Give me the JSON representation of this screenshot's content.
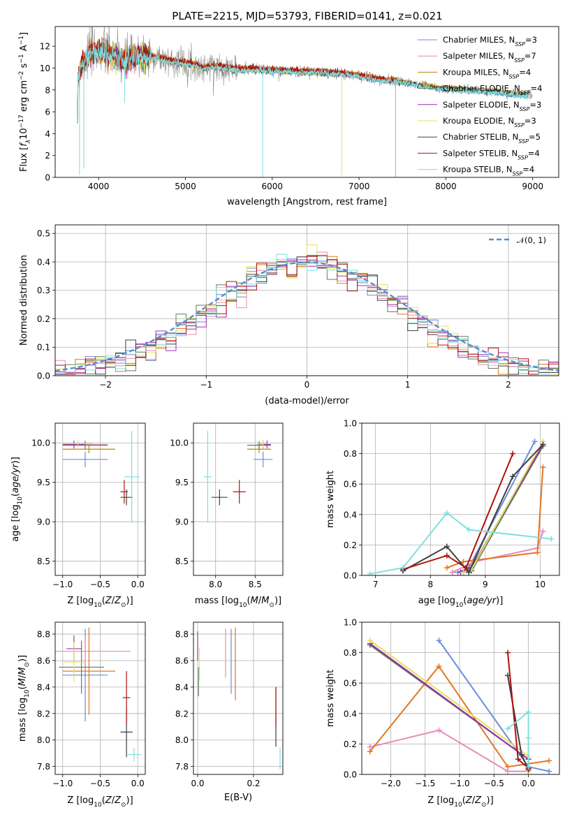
{
  "title": "PLATE=2215, MJD=53793, FIBERID=0141, z=0.021",
  "colors": {
    "Chabrier MILES": "#6b8ddc",
    "Salpeter MILES": "#e58bb8",
    "Kroupa MILES": "#b8860b",
    "Chabrier ELODIE": "#5f7f5f",
    "Salpeter ELODIE": "#9b30b0",
    "Kroupa ELODIE": "#e6e060",
    "Chabrier STELIB": "#404040",
    "Salpeter STELIB": "#b01010",
    "Kroupa STELIB": "#80dede",
    "orange": "#e07820",
    "observed": "#8a8a8a",
    "gaussian": "#5a8ad8"
  },
  "legend_entries": [
    {
      "name": "Chabrier MILES",
      "text": "Chabrier MILES, N",
      "sub": "SSP",
      "suffix": "=3"
    },
    {
      "name": "Salpeter MILES",
      "text": "Salpeter MILES, N",
      "sub": "SSP",
      "suffix": "=7"
    },
    {
      "name": "Kroupa MILES",
      "text": "Kroupa MILES, N",
      "sub": "SSP",
      "suffix": "=4"
    },
    {
      "name": "Chabrier ELODIE",
      "text": "Chabrier ELODIE, N",
      "sub": "SSP",
      "suffix": "=4"
    },
    {
      "name": "Salpeter ELODIE",
      "text": "Salpeter ELODIE, N",
      "sub": "SSP",
      "suffix": "=3"
    },
    {
      "name": "Kroupa ELODIE",
      "text": "Kroupa ELODIE, N",
      "sub": "SSP",
      "suffix": "=3"
    },
    {
      "name": "Chabrier STELIB",
      "text": "Chabrier STELIB, N",
      "sub": "SSP",
      "suffix": "=5"
    },
    {
      "name": "Salpeter STELIB",
      "text": "Salpeter STELIB, N",
      "sub": "SSP",
      "suffix": "=4"
    },
    {
      "name": "Kroupa STELIB",
      "text": "Kroupa STELIB, N",
      "sub": "SSP",
      "suffix": "=4"
    }
  ],
  "chart_data": [
    {
      "type": "line",
      "id": "spectrum",
      "xlabel": "wavelength [Angstrom, rest frame]",
      "ylabel": "Flux [f_λ 10^-17 erg cm^-2 s^-1 A^-1]",
      "xlim": [
        3500,
        9300
      ],
      "ylim": [
        0,
        13.8
      ],
      "xticks": [
        4000,
        5000,
        6000,
        7000,
        8000,
        9000
      ],
      "yticks": [
        0,
        2,
        4,
        6,
        8,
        10,
        12
      ],
      "legend": "top-right",
      "model_continuum": [
        [
          3750,
          8.5
        ],
        [
          3800,
          10.2
        ],
        [
          3850,
          10.8
        ],
        [
          3900,
          11.5
        ],
        [
          4000,
          11.6
        ],
        [
          4100,
          11.3
        ],
        [
          4200,
          11.0
        ],
        [
          4300,
          10.6
        ],
        [
          4400,
          10.9
        ],
        [
          4500,
          11.0
        ],
        [
          4600,
          11.0
        ],
        [
          4700,
          10.9
        ],
        [
          4800,
          10.7
        ],
        [
          4900,
          10.6
        ],
        [
          5000,
          10.5
        ],
        [
          5100,
          10.3
        ],
        [
          5200,
          10.0
        ],
        [
          5300,
          10.2
        ],
        [
          5400,
          10.1
        ],
        [
          5500,
          10.0
        ],
        [
          5600,
          9.9
        ],
        [
          5800,
          9.9
        ],
        [
          6000,
          9.8
        ],
        [
          6200,
          9.7
        ],
        [
          6400,
          9.7
        ],
        [
          6600,
          9.6
        ],
        [
          6800,
          9.5
        ],
        [
          7000,
          9.3
        ],
        [
          7200,
          9.0
        ],
        [
          7400,
          8.8
        ],
        [
          7600,
          8.6
        ],
        [
          7800,
          8.3
        ],
        [
          8000,
          8.1
        ],
        [
          8200,
          8.0
        ],
        [
          8400,
          7.9
        ],
        [
          8600,
          7.8
        ],
        [
          8800,
          7.6
        ],
        [
          9000,
          7.5
        ]
      ],
      "dips": [
        [
          3780,
          0.2
        ],
        [
          3830,
          0.8
        ],
        [
          4300,
          6.8
        ],
        [
          5890,
          0.0
        ],
        [
          6800,
          0.2
        ],
        [
          7420,
          0.0
        ]
      ]
    },
    {
      "type": "bar",
      "id": "residuals",
      "xlabel": "(data-model)/error",
      "ylabel": "Normed distribution",
      "xlim": [
        -2.5,
        2.5
      ],
      "ylim": [
        0,
        0.53
      ],
      "xticks": [
        -2,
        -1,
        0,
        1,
        2
      ],
      "yticks": [
        0.0,
        0.1,
        0.2,
        0.3,
        0.4,
        0.5
      ],
      "grid": true,
      "legend": "top-right",
      "gaussian_label": "𝒩(0, 1)",
      "bin_width": 0.1
    },
    {
      "type": "scatter",
      "id": "age-vs-Z",
      "xlabel": "Z [log10(Z/Z⊙)]",
      "ylabel": "age [log10(age/yr)]",
      "xlim": [
        -1.1,
        0.1
      ],
      "ylim": [
        8.32,
        10.25
      ],
      "xticks": [
        -1.0,
        -0.5,
        0.0
      ],
      "yticks": [
        8.5,
        9.0,
        9.5,
        10.0
      ],
      "grid": true,
      "points": [
        {
          "series": "Chabrier MILES",
          "x": -0.7,
          "y": 9.79,
          "xerr": 0.3,
          "yerr": 0.1
        },
        {
          "series": "Salpeter MILES",
          "x": -0.7,
          "y": 9.98,
          "xerr": 0.3,
          "yerr": 0.05
        },
        {
          "series": "Kroupa MILES",
          "x": -0.65,
          "y": 9.92,
          "xerr": 0.35,
          "yerr": 0.05
        },
        {
          "series": "Chabrier ELODIE",
          "x": -0.7,
          "y": 9.97,
          "xerr": 0.3,
          "yerr": 0.05
        },
        {
          "series": "Salpeter ELODIE",
          "x": -0.85,
          "y": 9.98,
          "xerr": 0.15,
          "yerr": 0.05
        },
        {
          "series": "Kroupa ELODIE",
          "x": -0.8,
          "y": 9.99,
          "xerr": 0.2,
          "yerr": 0.05
        },
        {
          "series": "Chabrier STELIB",
          "x": -0.15,
          "y": 9.31,
          "xerr": 0.08,
          "yerr": 0.1
        },
        {
          "series": "Salpeter STELIB",
          "x": -0.18,
          "y": 9.38,
          "xerr": 0.05,
          "yerr": 0.15
        },
        {
          "series": "Kroupa STELIB",
          "x": -0.08,
          "y": 9.57,
          "xerr": 0.1,
          "yerr": 0.58
        }
      ]
    },
    {
      "type": "scatter",
      "id": "age-vs-mass",
      "xlabel": "mass [log10(M/M⊙)]",
      "ylabel": "",
      "xlim": [
        7.72,
        8.85
      ],
      "ylim": [
        8.32,
        10.25
      ],
      "xticks": [
        8.0,
        8.5
      ],
      "yticks": [
        8.5,
        9.0,
        9.5,
        10.0
      ],
      "grid": true,
      "points": [
        {
          "series": "Chabrier MILES",
          "x": 8.6,
          "y": 9.79,
          "xerr": 0.12,
          "yerr": 0.1
        },
        {
          "series": "Salpeter MILES",
          "x": 8.6,
          "y": 9.98,
          "xerr": 0.08,
          "yerr": 0.05
        },
        {
          "series": "Kroupa MILES",
          "x": 8.55,
          "y": 9.92,
          "xerr": 0.15,
          "yerr": 0.05
        },
        {
          "series": "Chabrier ELODIE",
          "x": 8.55,
          "y": 9.97,
          "xerr": 0.15,
          "yerr": 0.05
        },
        {
          "series": "Salpeter ELODIE",
          "x": 8.65,
          "y": 9.98,
          "xerr": 0.05,
          "yerr": 0.05
        },
        {
          "series": "Kroupa ELODIE",
          "x": 8.6,
          "y": 9.99,
          "xerr": 0.05,
          "yerr": 0.05
        },
        {
          "series": "Chabrier STELIB",
          "x": 8.05,
          "y": 9.31,
          "xerr": 0.1,
          "yerr": 0.1
        },
        {
          "series": "Salpeter STELIB",
          "x": 8.3,
          "y": 9.38,
          "xerr": 0.08,
          "yerr": 0.15
        },
        {
          "series": "Kroupa STELIB",
          "x": 7.9,
          "y": 9.57,
          "xerr": 0.05,
          "yerr": 0.58
        }
      ]
    },
    {
      "type": "line",
      "id": "weight-vs-age",
      "xlabel": "age [log10(age/yr)]",
      "ylabel": "mass weight",
      "xlim": [
        6.75,
        10.35
      ],
      "ylim": [
        0,
        1
      ],
      "xticks": [
        7,
        8,
        9,
        10
      ],
      "yticks": [
        0.0,
        0.2,
        0.4,
        0.6,
        0.8,
        1.0
      ],
      "grid": true,
      "series": [
        {
          "name": "Chabrier MILES",
          "points": [
            [
              8.5,
              0.02
            ],
            [
              8.7,
              0.05
            ],
            [
              9.9,
              0.88
            ]
          ]
        },
        {
          "name": "Salpeter MILES",
          "points": [
            [
              8.4,
              0.02
            ],
            [
              8.8,
              0.09
            ],
            [
              9.95,
              0.18
            ],
            [
              10.05,
              0.29
            ]
          ]
        },
        {
          "name": "orange",
          "points": [
            [
              8.3,
              0.05
            ],
            [
              8.6,
              0.09
            ],
            [
              9.95,
              0.15
            ],
            [
              10.05,
              0.71
            ]
          ]
        },
        {
          "name": "Chabrier ELODIE",
          "points": [
            [
              8.6,
              0.02
            ],
            [
              8.75,
              0.03
            ],
            [
              10.05,
              0.85
            ]
          ]
        },
        {
          "name": "Salpeter ELODIE",
          "points": [
            [
              8.55,
              0.02
            ],
            [
              8.75,
              0.05
            ],
            [
              10.05,
              0.86
            ]
          ]
        },
        {
          "name": "Kroupa ELODIE",
          "points": [
            [
              8.6,
              0.02
            ],
            [
              8.75,
              0.04
            ],
            [
              10.05,
              0.88
            ]
          ]
        },
        {
          "name": "Chabrier STELIB",
          "points": [
            [
              7.5,
              0.03
            ],
            [
              8.3,
              0.19
            ],
            [
              8.7,
              0.02
            ],
            [
              9.5,
              0.65
            ],
            [
              10.05,
              0.86
            ]
          ]
        },
        {
          "name": "Salpeter STELIB",
          "points": [
            [
              7.5,
              0.04
            ],
            [
              8.3,
              0.13
            ],
            [
              8.65,
              0.05
            ],
            [
              9.5,
              0.8
            ]
          ]
        },
        {
          "name": "Kroupa STELIB",
          "points": [
            [
              6.9,
              0.01
            ],
            [
              7.5,
              0.05
            ],
            [
              8.3,
              0.41
            ],
            [
              8.7,
              0.3
            ],
            [
              10.2,
              0.24
            ]
          ]
        }
      ]
    },
    {
      "type": "scatter",
      "id": "mass-vs-Z",
      "xlabel": "Z [log10(Z/Z⊙)]",
      "ylabel": "mass [log10(M/M⊙)]",
      "xlim": [
        -1.1,
        0.1
      ],
      "ylim": [
        7.74,
        8.89
      ],
      "xticks": [
        -1.0,
        -0.5,
        0.0
      ],
      "yticks": [
        7.8,
        8.0,
        8.2,
        8.4,
        8.6,
        8.8
      ],
      "grid": true,
      "points": [
        {
          "series": "Chabrier MILES",
          "x": -0.7,
          "y": 8.49,
          "xerr": 0.3,
          "yerr": 0.35
        },
        {
          "series": "Salpeter MILES",
          "x": -0.7,
          "y": 8.67,
          "xerr": 0.6,
          "yerr": 0.1
        },
        {
          "series": "orange",
          "x": -0.65,
          "y": 8.52,
          "xerr": 0.35,
          "yerr": 0.33
        },
        {
          "series": "Chabrier ELODIE",
          "x": -0.75,
          "y": 8.55,
          "xerr": 0.3,
          "yerr": 0.2
        },
        {
          "series": "Salpeter ELODIE",
          "x": -0.85,
          "y": 8.69,
          "xerr": 0.1,
          "yerr": 0.1
        },
        {
          "series": "Kroupa ELODIE",
          "x": -0.85,
          "y": 8.59,
          "xerr": 0.15,
          "yerr": 0.15
        },
        {
          "series": "Chabrier STELIB",
          "x": -0.15,
          "y": 8.06,
          "xerr": 0.08,
          "yerr": 0.19
        },
        {
          "series": "Salpeter STELIB",
          "x": -0.15,
          "y": 8.32,
          "xerr": 0.05,
          "yerr": 0.2
        },
        {
          "series": "Kroupa STELIB",
          "x": -0.05,
          "y": 7.89,
          "xerr": 0.1,
          "yerr": 0.05
        }
      ]
    },
    {
      "type": "scatter",
      "id": "mass-vs-ebv",
      "xlabel": "E(B-V)",
      "ylabel": "",
      "xlim": [
        -0.015,
        0.305
      ],
      "ylim": [
        7.74,
        8.89
      ],
      "xticks": [
        0.0,
        0.2
      ],
      "yticks": [
        7.8,
        8.0,
        8.2,
        8.4,
        8.6,
        8.8
      ],
      "grid": true,
      "vlines": [
        {
          "series": "Salpeter ELODIE",
          "x": 0.0,
          "y0": 8.6,
          "y1": 8.82
        },
        {
          "series": "Chabrier ELODIE",
          "x": 0.003,
          "y0": 8.33,
          "y1": 8.55
        },
        {
          "series": "Kroupa ELODIE",
          "x": 0.006,
          "y0": 8.45,
          "y1": 8.7
        },
        {
          "series": "Salpeter MILES",
          "x": 0.1,
          "y0": 8.47,
          "y1": 8.84
        },
        {
          "series": "Chabrier MILES",
          "x": 0.12,
          "y0": 8.35,
          "y1": 8.84
        },
        {
          "series": "orange",
          "x": 0.135,
          "y0": 8.3,
          "y1": 8.85
        },
        {
          "series": "Chabrier STELIB",
          "x": 0.28,
          "y0": 7.95,
          "y1": 8.4
        },
        {
          "series": "Salpeter STELIB",
          "x": 0.28,
          "y0": 8.1,
          "y1": 8.4
        },
        {
          "series": "Kroupa STELIB",
          "x": 0.295,
          "y0": 7.78,
          "y1": 7.94
        }
      ]
    },
    {
      "type": "line",
      "id": "weight-vs-Z",
      "xlabel": "Z [log10(Z/Z⊙)]",
      "ylabel": "mass weight",
      "xlim": [
        -2.42,
        0.45
      ],
      "ylim": [
        0,
        1
      ],
      "xticks": [
        -2.0,
        -1.5,
        -1.0,
        -0.5,
        0.0
      ],
      "yticks": [
        0.0,
        0.2,
        0.4,
        0.6,
        0.8,
        1.0
      ],
      "grid": true,
      "series": [
        {
          "name": "Chabrier MILES",
          "points": [
            [
              -1.3,
              0.88
            ],
            [
              0.0,
              0.05
            ],
            [
              0.3,
              0.02
            ]
          ]
        },
        {
          "name": "Salpeter MILES",
          "points": [
            [
              -2.3,
              0.18
            ],
            [
              -1.3,
              0.29
            ],
            [
              -0.3,
              0.02
            ],
            [
              0.0,
              0.02
            ],
            [
              0.0,
              0.05
            ]
          ]
        },
        {
          "name": "orange",
          "points": [
            [
              -2.3,
              0.15
            ],
            [
              -1.3,
              0.71
            ],
            [
              -0.3,
              0.05
            ],
            [
              0.3,
              0.09
            ]
          ]
        },
        {
          "name": "Chabrier ELODIE",
          "points": [
            [
              -2.3,
              0.85
            ],
            [
              0.0,
              0.1
            ],
            [
              0.0,
              0.02
            ]
          ]
        },
        {
          "name": "Salpeter ELODIE",
          "points": [
            [
              -2.3,
              0.86
            ],
            [
              0.0,
              0.1
            ],
            [
              0.0,
              0.04
            ]
          ]
        },
        {
          "name": "Kroupa ELODIE",
          "points": [
            [
              -2.3,
              0.88
            ],
            [
              0.0,
              0.12
            ],
            [
              0.0,
              0.02
            ]
          ]
        },
        {
          "name": "Chabrier STELIB",
          "points": [
            [
              -0.3,
              0.65
            ],
            [
              -0.1,
              0.13
            ],
            [
              0.0,
              0.03
            ]
          ]
        },
        {
          "name": "Salpeter STELIB",
          "points": [
            [
              -0.3,
              0.8
            ],
            [
              -0.15,
              0.1
            ],
            [
              0.0,
              0.04
            ]
          ]
        },
        {
          "name": "Kroupa STELIB",
          "points": [
            [
              -0.3,
              0.3
            ],
            [
              0.0,
              0.41
            ],
            [
              0.0,
              0.24
            ],
            [
              0.0,
              0.05
            ]
          ]
        }
      ]
    }
  ]
}
